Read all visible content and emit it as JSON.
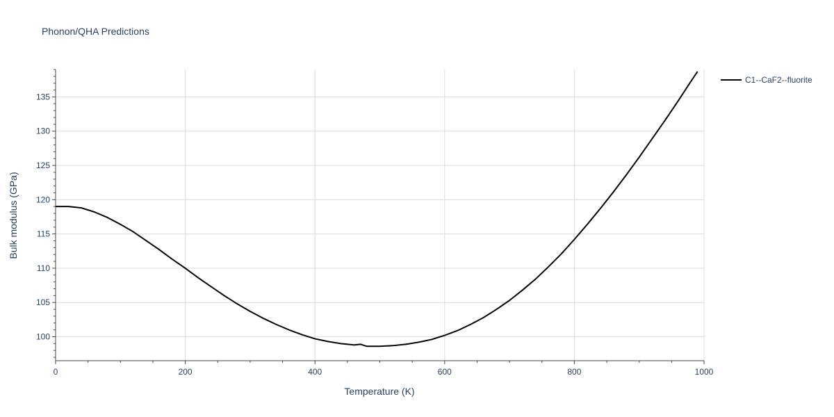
{
  "chart_data": {
    "type": "line",
    "title": "Phonon/QHA Predictions",
    "xlabel": "Temperature (K)",
    "ylabel": "Bulk modulus (GPa)",
    "xlim": [
      0,
      1000
    ],
    "ylim": [
      96.5,
      139
    ],
    "x_ticks": [
      0,
      200,
      400,
      600,
      800,
      1000
    ],
    "y_ticks": [
      100,
      105,
      110,
      115,
      120,
      125,
      130,
      135
    ],
    "grid": true,
    "legend_position": "top-right",
    "series": [
      {
        "name": "C1--CaF2--fluorite",
        "color": "#000000",
        "x": [
          0,
          10,
          20,
          30,
          40,
          50,
          60,
          70,
          80,
          90,
          100,
          120,
          140,
          160,
          180,
          200,
          220,
          240,
          260,
          280,
          300,
          320,
          340,
          360,
          380,
          400,
          420,
          440,
          460,
          470,
          480,
          500,
          520,
          540,
          560,
          580,
          600,
          620,
          640,
          660,
          680,
          700,
          720,
          740,
          760,
          780,
          800,
          820,
          840,
          860,
          880,
          900,
          920,
          940,
          960,
          980,
          990
        ],
        "y": [
          119.0,
          119.0,
          119.0,
          118.9,
          118.8,
          118.5,
          118.2,
          117.8,
          117.4,
          116.9,
          116.4,
          115.3,
          114.0,
          112.7,
          111.3,
          110.0,
          108.6,
          107.3,
          106.0,
          104.8,
          103.7,
          102.7,
          101.8,
          101.0,
          100.3,
          99.7,
          99.3,
          99.0,
          98.8,
          98.9,
          98.6,
          98.6,
          98.7,
          98.9,
          99.2,
          99.6,
          100.2,
          100.9,
          101.8,
          102.8,
          104.0,
          105.3,
          106.8,
          108.4,
          110.2,
          112.1,
          114.2,
          116.4,
          118.7,
          121.1,
          123.6,
          126.2,
          128.9,
          131.6,
          134.4,
          137.3,
          138.7
        ]
      }
    ]
  }
}
